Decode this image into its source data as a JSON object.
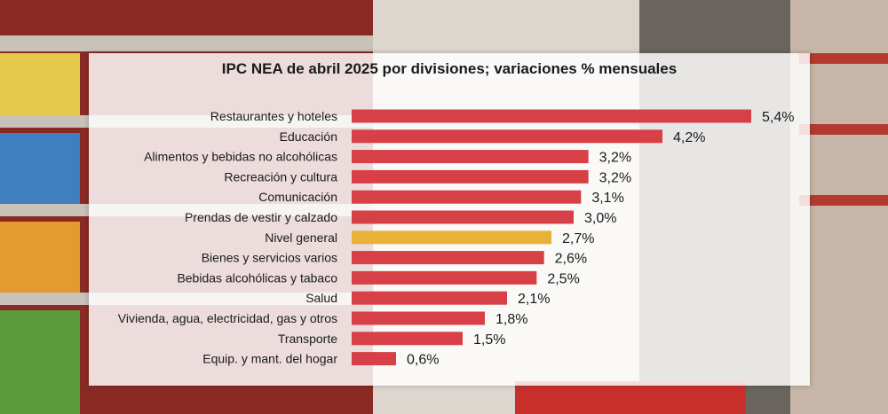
{
  "chart_data": {
    "type": "bar",
    "orientation": "horizontal",
    "title": "IPC NEA de abril 2025 por divisiones; variaciones % mensuales",
    "categories": [
      "Restaurantes y hoteles",
      "Educación",
      "Alimentos y bebidas no alcohólicas",
      "Recreación y cultura",
      "Comunicación",
      "Prendas de vestir y calzado",
      "Nivel general",
      "Bienes y servicios varios",
      "Bebidas alcohólicas y tabaco",
      "Salud",
      "Vivienda, agua, electricidad, gas y otros",
      "Transporte",
      "Equip. y mant. del hogar"
    ],
    "values": [
      5.4,
      4.2,
      3.2,
      3.2,
      3.1,
      3.0,
      2.7,
      2.6,
      2.5,
      2.1,
      1.8,
      1.5,
      0.6
    ],
    "value_labels": [
      "5,4%",
      "4,2%",
      "3,2%",
      "3,2%",
      "3,1%",
      "3,0%",
      "2,7%",
      "2,6%",
      "2,5%",
      "2,1%",
      "1,8%",
      "1,5%",
      "0,6%"
    ],
    "highlight_category": "Nivel general",
    "colors": {
      "bar": "#d64046",
      "highlight": "#e8b13a",
      "text": "#1a1a1a"
    },
    "xlim": [
      0,
      5.4
    ],
    "grid": false,
    "legend": "none"
  }
}
